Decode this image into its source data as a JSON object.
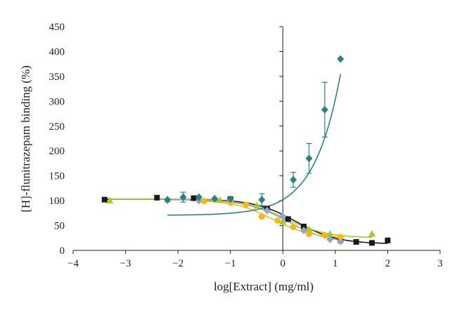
{
  "chart_data": {
    "type": "scatter",
    "title": "",
    "xlabel": "log[Extract] (mg/ml)",
    "ylabel": "[H]-flunitrazepam binding (%)",
    "xlim": [
      -4,
      3
    ],
    "ylim": [
      0,
      450
    ],
    "x_ticks": [
      -4,
      -3,
      -2,
      -1,
      0,
      1,
      2,
      3
    ],
    "x_tick_labels": [
      "−4",
      "−3",
      "−2",
      "−1",
      "0",
      "1",
      "2",
      "3"
    ],
    "y_ticks": [
      0,
      50,
      100,
      150,
      200,
      250,
      300,
      350,
      400,
      450
    ],
    "y_tick_labels": [
      "0",
      "50",
      "100",
      "150",
      "200",
      "250",
      "300",
      "350",
      "400",
      "450"
    ],
    "grid": false,
    "legend": "none",
    "series": [
      {
        "marker": "square",
        "color": "#1a1a1a",
        "points": [
          [
            -3.4,
            102
          ],
          [
            -2.4,
            106
          ],
          [
            -1.7,
            105
          ],
          [
            -1.0,
            103
          ],
          [
            -0.3,
            84
          ],
          [
            0.1,
            63
          ],
          [
            0.4,
            48
          ],
          [
            1.1,
            20
          ],
          [
            1.4,
            17
          ],
          [
            1.7,
            15
          ],
          [
            2.0,
            20
          ]
        ],
        "curve": {
          "top": 103,
          "bottom": 13,
          "logIC50": 0.25,
          "hill": 1.1,
          "x_range": [
            -3.4,
            2.0
          ]
        }
      },
      {
        "marker": "triangle",
        "color": "#9ccc2e",
        "points": [
          [
            -3.3,
            100
          ],
          [
            -2.2,
            102
          ],
          [
            -1.6,
            104
          ],
          [
            -1.2,
            101
          ],
          [
            -0.5,
            90
          ],
          [
            0.0,
            58
          ],
          [
            0.5,
            42
          ],
          [
            0.9,
            33
          ],
          [
            1.7,
            33
          ]
        ],
        "curve": {
          "top": 103,
          "bottom": 25,
          "logIC50": 0.05,
          "hill": 1.1,
          "x_range": [
            -3.3,
            1.7
          ]
        }
      },
      {
        "marker": "diamond",
        "color": "#9aa2c2",
        "points": [
          [
            -2.2,
            101
          ],
          [
            -1.6,
            100
          ],
          [
            -1.0,
            99
          ],
          [
            -0.3,
            80
          ],
          [
            0.0,
            68
          ],
          [
            0.4,
            40
          ],
          [
            0.9,
            22
          ],
          [
            1.1,
            18
          ]
        ],
        "curve": {
          "top": 102,
          "bottom": 14,
          "logIC50": 0.1,
          "hill": 1.1,
          "x_range": [
            -2.2,
            1.1
          ]
        }
      },
      {
        "marker": "circle",
        "color": "#f5b81c",
        "points": [
          [
            -1.5,
            99
          ],
          [
            -1.0,
            96
          ],
          [
            -0.7,
            92
          ],
          [
            -0.4,
            68
          ],
          [
            -0.1,
            60
          ],
          [
            0.2,
            47
          ],
          [
            0.5,
            33
          ],
          [
            0.8,
            30
          ],
          [
            1.1,
            27
          ]
        ],
        "curve": {
          "top": 101,
          "bottom": 25,
          "logIC50": -0.2,
          "hill": 1.2,
          "x_range": [
            -1.5,
            1.1
          ]
        }
      },
      {
        "marker": "diamond",
        "color": "#2f8080",
        "points": [
          [
            -2.2,
            102
          ],
          [
            -1.9,
            107
          ],
          [
            -1.6,
            107
          ],
          [
            -1.3,
            104
          ],
          [
            -1.0,
            103
          ],
          [
            -0.4,
            102
          ],
          [
            0.2,
            142
          ],
          [
            0.5,
            185
          ],
          [
            0.8,
            283
          ],
          [
            1.1,
            385
          ]
        ],
        "errors": [
          0,
          10,
          0,
          0,
          0,
          12,
          15,
          30,
          55,
          0
        ],
        "curve": {
          "type": "exp",
          "base": 102,
          "a": 31.5,
          "k": 2.0,
          "x_range": [
            -2.2,
            1.1
          ]
        }
      }
    ]
  }
}
